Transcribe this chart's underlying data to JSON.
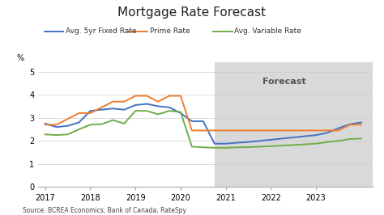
{
  "title": "Mortgage Rate Forecast",
  "ylabel": "%",
  "source": "Source: BCREA Economics; Bank of Canada; RateSpy",
  "forecast_label": "Forecast",
  "forecast_start": 2020.75,
  "xlim": [
    2016.85,
    2024.25
  ],
  "ylim": [
    0,
    5.4
  ],
  "yticks": [
    0,
    1,
    2,
    3,
    4,
    5
  ],
  "xticks": [
    2017,
    2018,
    2019,
    2020,
    2021,
    2022,
    2023
  ],
  "background_color": "#ffffff",
  "forecast_bg_color": "#d9d9d9",
  "fixed_rate": {
    "label": "Avg. 5yr Fixed Rate",
    "color": "#4472c4",
    "x": [
      2017.0,
      2017.25,
      2017.5,
      2017.75,
      2018.0,
      2018.25,
      2018.5,
      2018.75,
      2019.0,
      2019.25,
      2019.5,
      2019.75,
      2020.0,
      2020.25,
      2020.5,
      2020.75,
      2021.0,
      2021.25,
      2021.5,
      2021.75,
      2022.0,
      2022.25,
      2022.5,
      2022.75,
      2023.0,
      2023.25,
      2023.5,
      2023.75,
      2024.0
    ],
    "y": [
      2.75,
      2.6,
      2.65,
      2.8,
      3.3,
      3.35,
      3.4,
      3.35,
      3.55,
      3.6,
      3.5,
      3.45,
      3.2,
      2.85,
      2.85,
      1.88,
      1.88,
      1.92,
      1.95,
      2.0,
      2.05,
      2.1,
      2.15,
      2.2,
      2.25,
      2.35,
      2.55,
      2.72,
      2.8
    ]
  },
  "prime_rate": {
    "label": "Prime Rate",
    "color": "#ed7d31",
    "x": [
      2017.0,
      2017.25,
      2017.5,
      2017.75,
      2018.0,
      2018.25,
      2018.5,
      2018.75,
      2019.0,
      2019.25,
      2019.5,
      2019.75,
      2020.0,
      2020.25,
      2020.5,
      2020.75,
      2021.0,
      2021.25,
      2021.5,
      2021.75,
      2022.0,
      2022.25,
      2022.5,
      2022.75,
      2023.0,
      2023.25,
      2023.5,
      2023.75,
      2024.0
    ],
    "y": [
      2.7,
      2.7,
      2.95,
      3.2,
      3.2,
      3.45,
      3.7,
      3.7,
      3.95,
      3.95,
      3.7,
      3.95,
      3.95,
      2.45,
      2.45,
      2.45,
      2.45,
      2.45,
      2.45,
      2.45,
      2.45,
      2.45,
      2.45,
      2.45,
      2.45,
      2.45,
      2.45,
      2.7,
      2.7
    ]
  },
  "variable_rate": {
    "label": "Avg. Variable Rate",
    "color": "#70ad47",
    "x": [
      2017.0,
      2017.25,
      2017.5,
      2017.75,
      2018.0,
      2018.25,
      2018.5,
      2018.75,
      2019.0,
      2019.25,
      2019.5,
      2019.75,
      2020.0,
      2020.25,
      2020.5,
      2020.75,
      2021.0,
      2021.25,
      2021.5,
      2021.75,
      2022.0,
      2022.25,
      2022.5,
      2022.75,
      2023.0,
      2023.25,
      2023.5,
      2023.75,
      2024.0
    ],
    "y": [
      2.28,
      2.25,
      2.28,
      2.5,
      2.7,
      2.72,
      2.9,
      2.75,
      3.3,
      3.3,
      3.15,
      3.3,
      3.25,
      1.75,
      1.72,
      1.7,
      1.7,
      1.72,
      1.73,
      1.75,
      1.77,
      1.8,
      1.82,
      1.85,
      1.88,
      1.95,
      2.0,
      2.08,
      2.1
    ]
  }
}
